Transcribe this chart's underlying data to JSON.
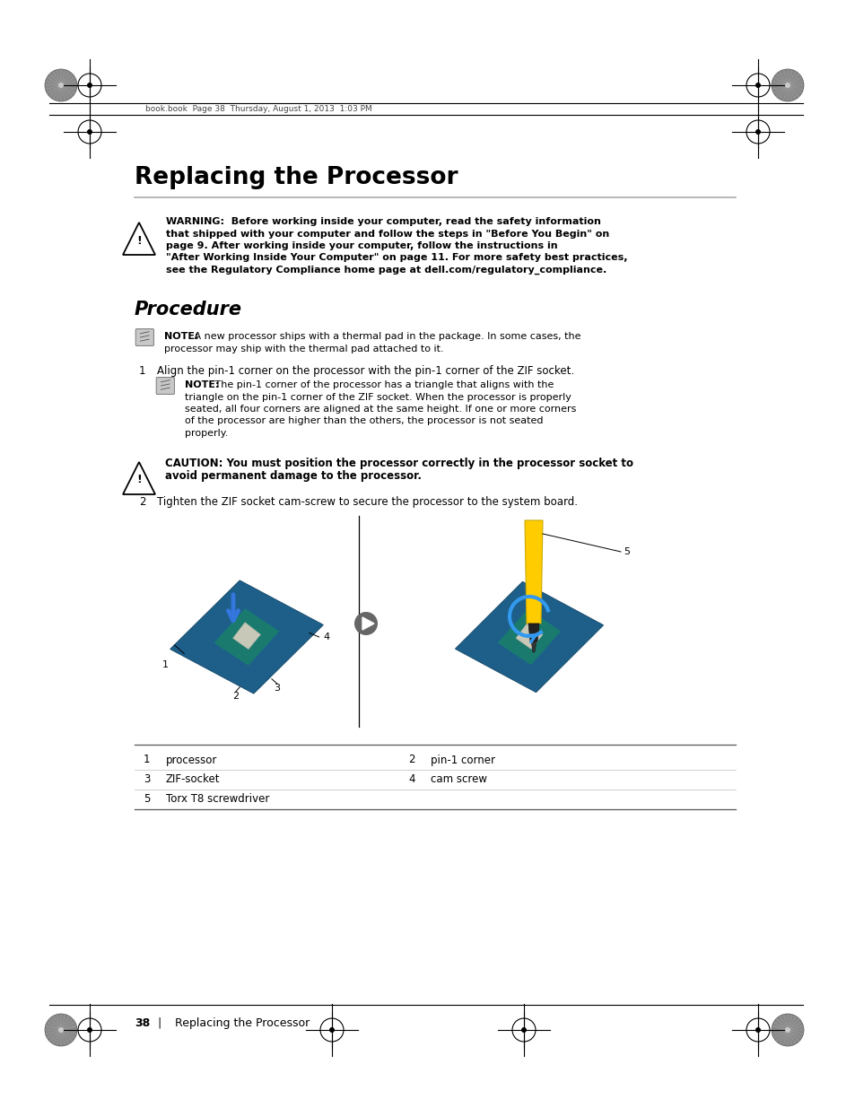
{
  "bg_color": "#ffffff",
  "title": "Replacing the Processor",
  "section": "Procedure",
  "header_text": "book.book  Page 38  Thursday, August 1, 2013  1:03 PM",
  "warning_text_bold": "WARNING:  Before working inside your computer, read the safety information\nthat shipped with your computer and follow the steps in \"Before You Begin\" on\npage 9. After working inside your computer, follow the instructions in\n\"After Working Inside Your Computer\" on page 11. For more safety best practices,\nsee the Regulatory Compliance home page at dell.com/regulatory_compliance.",
  "note1_bold": "NOTE:",
  "note1_rest": " A new processor ships with a thermal pad in the package. In some cases, the\nprocessor may ship with the thermal pad attached to it.",
  "step1_num": "1",
  "step1_text": "Align the pin-1 corner on the processor with the pin-1 corner of the ZIF socket.",
  "note2_bold": "NOTE:",
  "note2_rest": " The pin-1 corner of the processor has a triangle that aligns with the\ntriangle on the pin-1 corner of the ZIF socket. When the processor is properly\nseated, all four corners are aligned at the same height. If one or more corners\nof the processor are higher than the others, the processor is not seated\nproperly.",
  "caution_bold": "CAUTION: You must position the processor correctly in the processor socket to\navoid permanent damage to the processor.",
  "step2_num": "2",
  "step2_text": "Tighten the ZIF socket cam-screw to secure the processor to the system board.",
  "table_items": [
    [
      "1",
      "processor",
      "2",
      "pin-1 corner"
    ],
    [
      "3",
      "ZIF-socket",
      "4",
      "cam screw"
    ],
    [
      "5",
      "Torx T8 screwdriver",
      "",
      ""
    ]
  ],
  "footer_num": "38",
  "footer_text": "Replacing the Processor",
  "crosshair_color": "#000000",
  "text_color": "#000000",
  "line_color": "#888888",
  "header_line_color": "#000000"
}
